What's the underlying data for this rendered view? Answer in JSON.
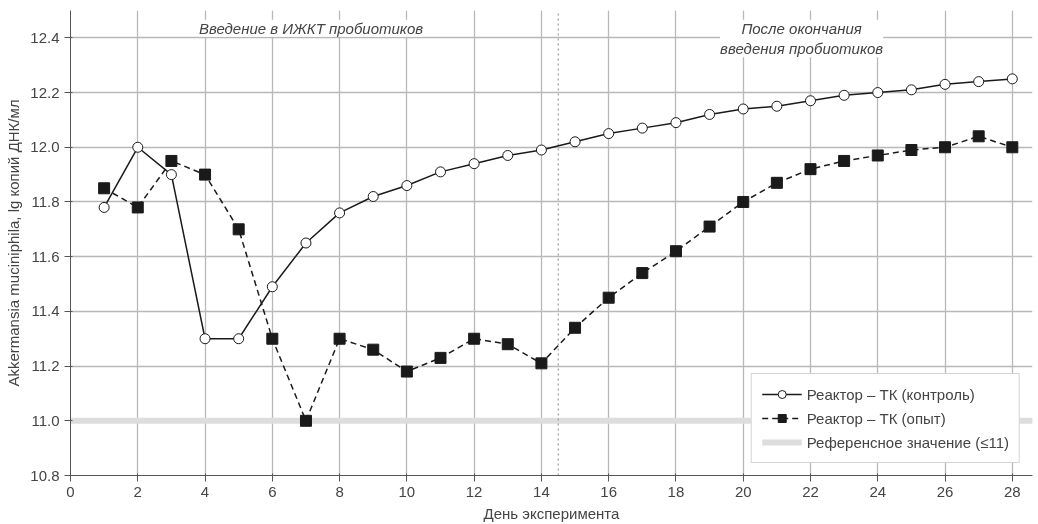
{
  "chart_data": {
    "type": "line",
    "xlabel": "День эксперимента",
    "ylabel": "Akkermansia muciniphila, lg копий ДНК/мл",
    "x": [
      1,
      2,
      3,
      4,
      5,
      6,
      7,
      8,
      9,
      10,
      11,
      12,
      13,
      14,
      15,
      16,
      17,
      18,
      19,
      20,
      21,
      22,
      23,
      24,
      25,
      26,
      27,
      28
    ],
    "series": [
      {
        "name": "Реактор – ТК (контроль)",
        "color": "#1a1a1a",
        "marker": "circle",
        "line_style": "solid",
        "values": [
          11.78,
          12.0,
          11.9,
          11.3,
          11.3,
          11.49,
          11.65,
          11.76,
          11.82,
          11.86,
          11.91,
          11.94,
          11.97,
          11.99,
          12.02,
          12.05,
          12.07,
          12.09,
          12.12,
          12.14,
          12.15,
          12.17,
          12.19,
          12.2,
          12.21,
          12.23,
          12.24,
          12.25
        ]
      },
      {
        "name": "Реактор – ТК (опыт)",
        "color": "#1a1a1a",
        "marker": "square",
        "line_style": "dashed",
        "values": [
          11.85,
          11.78,
          11.95,
          11.9,
          11.7,
          11.3,
          11.0,
          11.3,
          11.26,
          11.18,
          11.23,
          11.3,
          11.28,
          11.21,
          11.34,
          11.45,
          11.54,
          11.62,
          11.71,
          11.8,
          11.87,
          11.92,
          11.95,
          11.97,
          11.99,
          12.0,
          12.04,
          12.0
        ]
      }
    ],
    "ref_lines": [
      {
        "axis": "y",
        "value": 11.0,
        "label": "Референсное значение (≤11)",
        "color": "#dddddd",
        "line_style": "solid"
      },
      {
        "axis": "x",
        "value": 14.5,
        "color": "#888888",
        "line_style": "dotted"
      }
    ],
    "annotations": [
      "Введение в ИЖКТ пробиотиков",
      "После окончания\nвведения пробиотиков"
    ],
    "xlim": [
      0,
      28.6
    ],
    "ylim": [
      10.8,
      12.5
    ],
    "xticks": [
      0,
      2,
      4,
      6,
      8,
      10,
      12,
      14,
      16,
      18,
      20,
      22,
      24,
      26,
      28
    ],
    "yticks": [
      {
        "value": 10.8,
        "label": "10.8"
      },
      {
        "value": 11.0,
        "label": "11.0"
      },
      {
        "value": 11.2,
        "label": "11.2"
      },
      {
        "value": 11.4,
        "label": "11.4"
      },
      {
        "value": 11.6,
        "label": "11.6"
      },
      {
        "value": 11.8,
        "label": "11.8"
      },
      {
        "value": 12.0,
        "label": "12.0"
      },
      {
        "value": 12.2,
        "label": "12.2"
      },
      {
        "value": 12.4,
        "label": "12.4"
      }
    ],
    "grid": true,
    "legend": "bottom right"
  }
}
